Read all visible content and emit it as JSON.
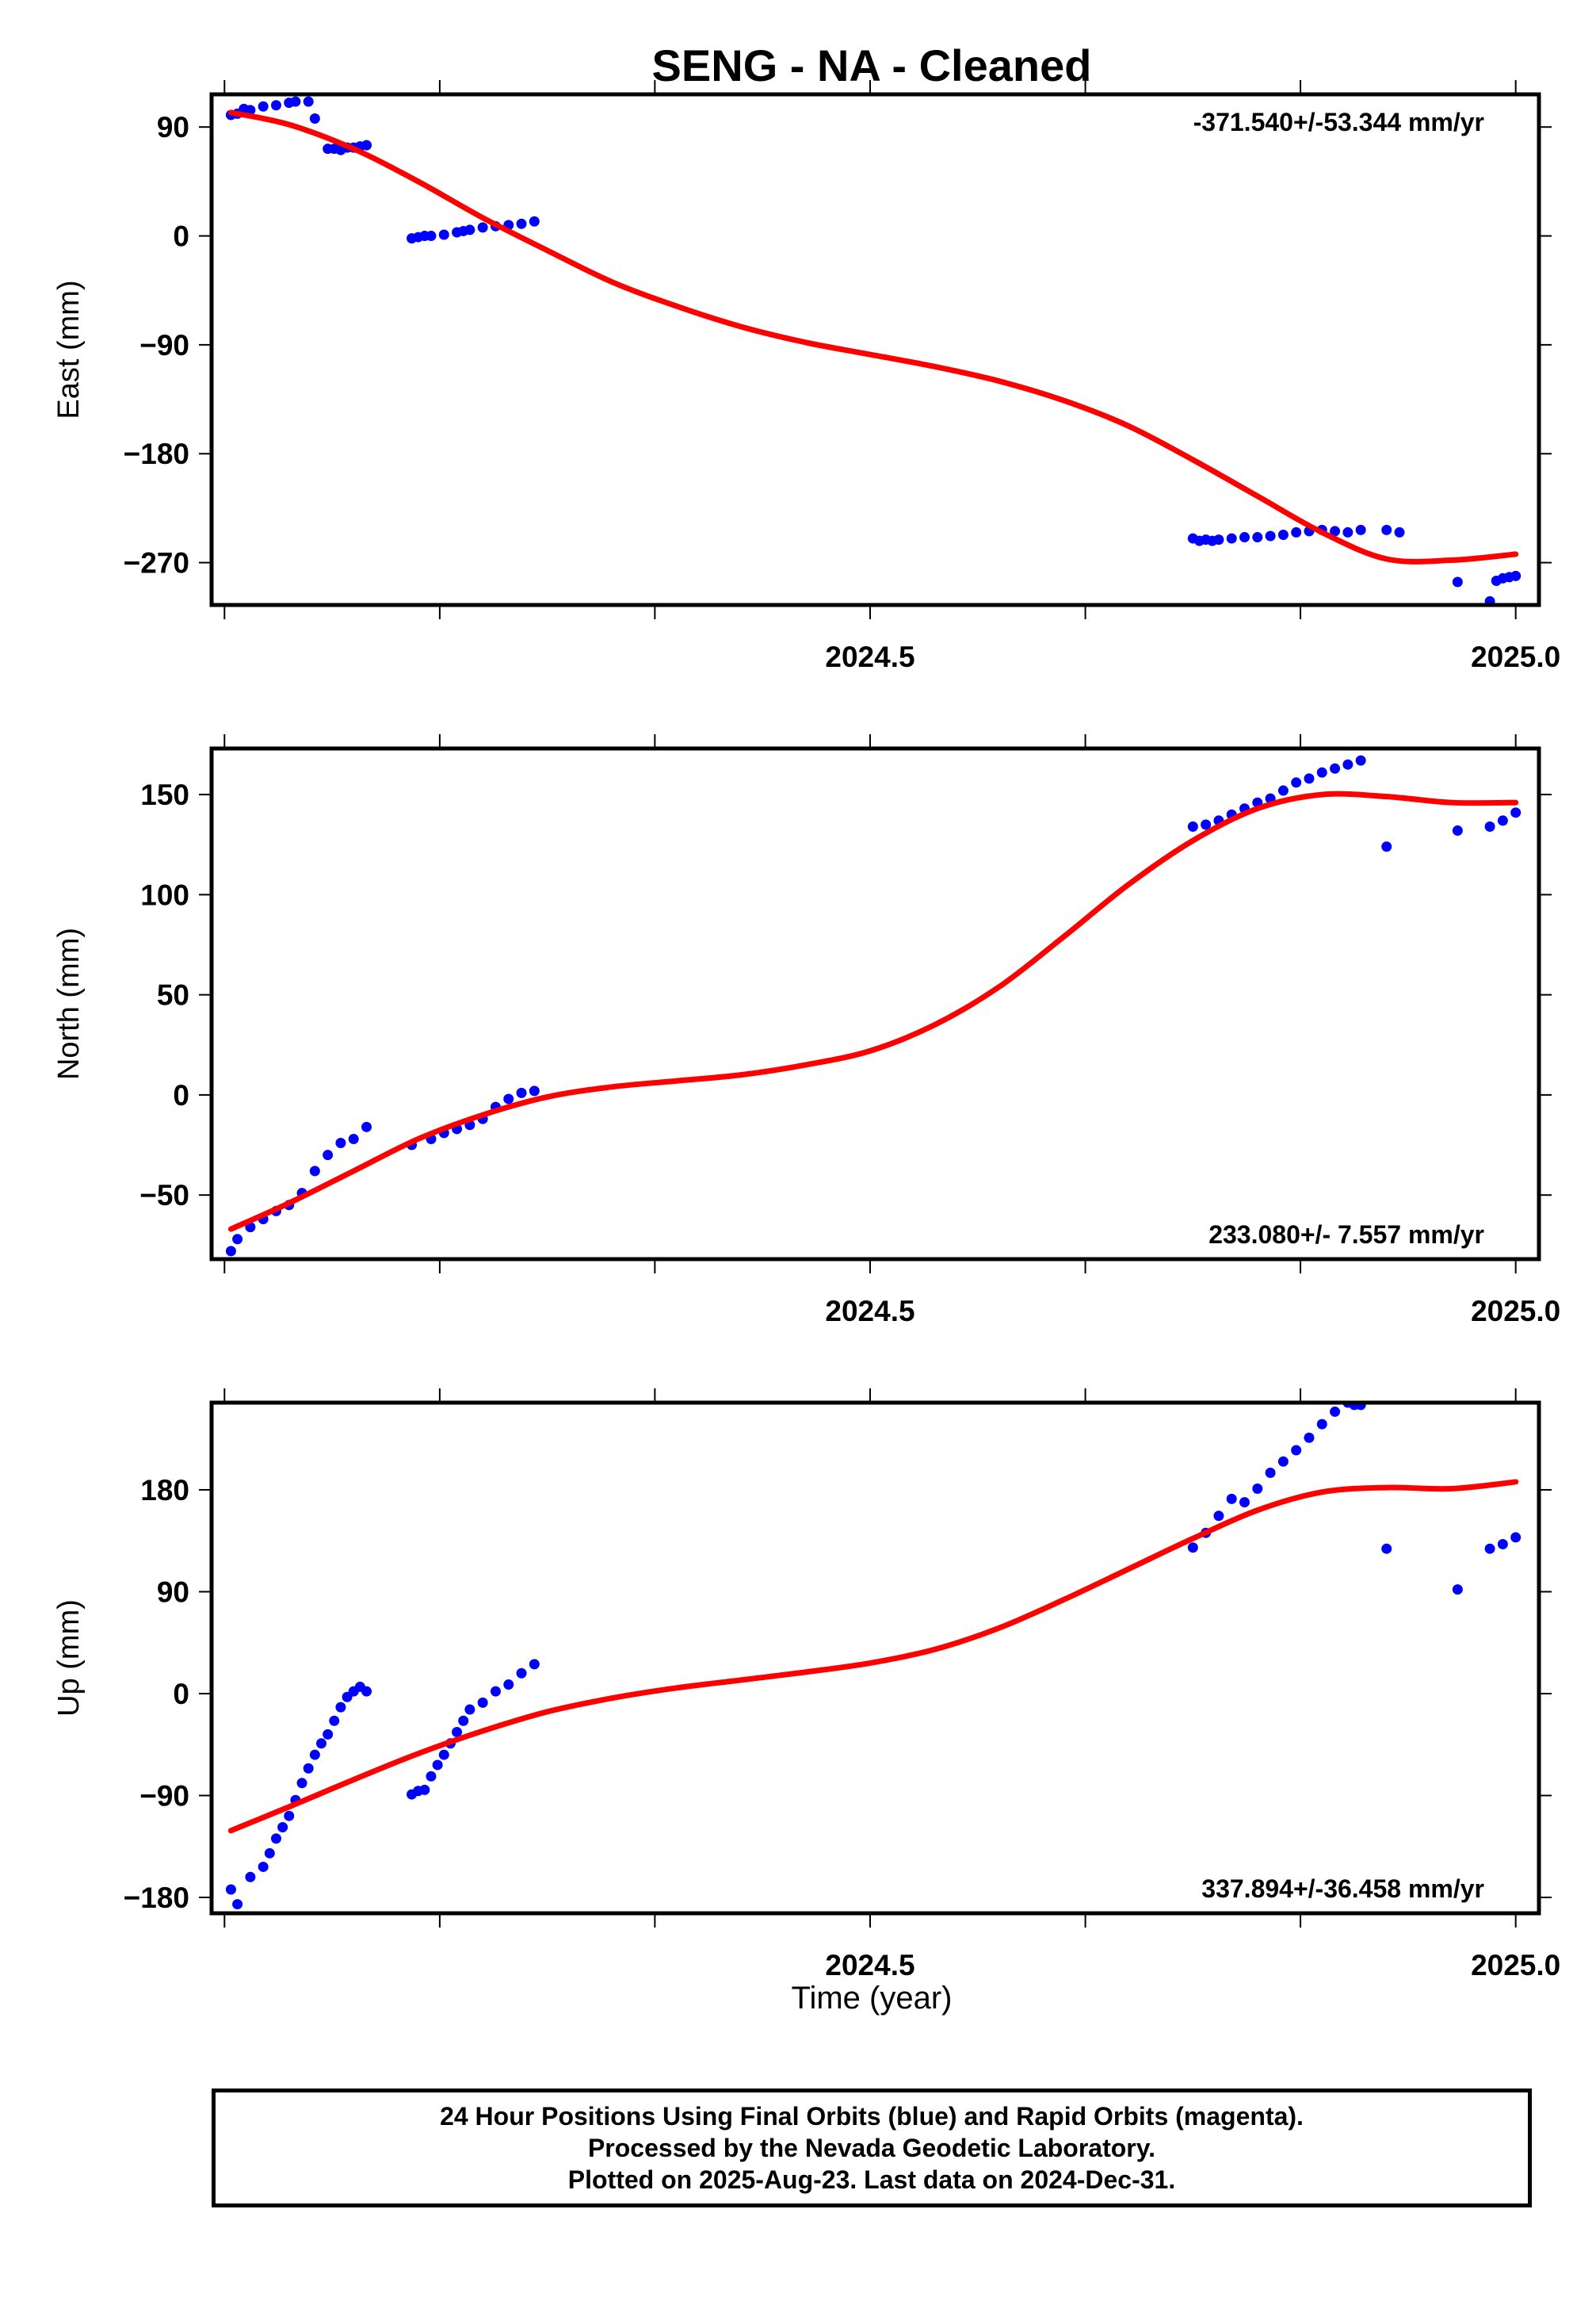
{
  "chart_data": {
    "title": "SENG  - NA - Cleaned",
    "type": "scatter",
    "xlabel": "Time (year)",
    "xticks": [
      "2024.5",
      "2025.0"
    ],
    "panels": [
      {
        "name": "East",
        "ylabel": "East (mm)",
        "yticks": [
          "90",
          "0",
          "−90",
          "−180",
          "−270"
        ],
        "ylim": [
          -305,
          117
        ],
        "xlim": [
          2023.99,
          2025.018
        ],
        "rate_label": "-371.540+/-53.344 mm/yr",
        "rate_position": "top-right",
        "fit": {
          "x": [
            2024.005,
            2024.05,
            2024.1,
            2024.15,
            2024.2,
            2024.25,
            2024.3,
            2024.35,
            2024.4,
            2024.45,
            2024.5,
            2024.55,
            2024.6,
            2024.65,
            2024.7,
            2024.75,
            2024.8,
            2024.85,
            2024.9,
            2024.95,
            2025.0
          ],
          "y": [
            102,
            92,
            72,
            45,
            15,
            -12,
            -38,
            -58,
            -75,
            -88,
            -98,
            -108,
            -120,
            -136,
            -157,
            -185,
            -215,
            -245,
            -267,
            -268,
            -263
          ]
        },
        "observations": {
          "x": [
            2024.005,
            2024.01,
            2024.015,
            2024.02,
            2024.03,
            2024.04,
            2024.05,
            2024.055,
            2024.065,
            2024.07,
            2024.08,
            2024.085,
            2024.09,
            2024.095,
            2024.1,
            2024.105,
            2024.11,
            2024.145,
            2024.15,
            2024.155,
            2024.16,
            2024.17,
            2024.18,
            2024.185,
            2024.19,
            2024.2,
            2024.21,
            2024.22,
            2024.23,
            2024.24,
            2024.75,
            2024.755,
            2024.76,
            2024.765,
            2024.77,
            2024.78,
            2024.79,
            2024.8,
            2024.81,
            2024.82,
            2024.83,
            2024.84,
            2024.85,
            2024.86,
            2024.87,
            2024.88,
            2024.9,
            2024.91,
            2024.955,
            2024.98,
            2024.985,
            2024.99,
            2024.995,
            2025.0
          ],
          "y": [
            100,
            101,
            105,
            104,
            107,
            108,
            110,
            111,
            111,
            97,
            72,
            72,
            71,
            73,
            73,
            74,
            75,
            -2,
            -1,
            0,
            0,
            1,
            3,
            4,
            5,
            7,
            8,
            9,
            10,
            12,
            -250,
            -252,
            -251,
            -252,
            -251,
            -250,
            -249,
            -249,
            -248,
            -247,
            -245,
            -244,
            -243,
            -244,
            -245,
            -243,
            -243,
            -245,
            -286,
            -302,
            -285,
            -283,
            -282,
            -281
          ]
        }
      },
      {
        "name": "North",
        "ylabel": "North (mm)",
        "yticks": [
          "150",
          "100",
          "50",
          "0",
          "−50"
        ],
        "ylim": [
          -82,
          173
        ],
        "xlim": [
          2023.99,
          2025.018
        ],
        "rate_label": "233.080+/- 7.557 mm/yr",
        "rate_position": "bottom-right",
        "fit": {
          "x": [
            2024.005,
            2024.05,
            2024.1,
            2024.15,
            2024.2,
            2024.25,
            2024.3,
            2024.35,
            2024.4,
            2024.45,
            2024.5,
            2024.55,
            2024.6,
            2024.65,
            2024.7,
            2024.75,
            2024.8,
            2024.85,
            2024.9,
            2024.95,
            2025.0
          ],
          "y": [
            -67,
            -54,
            -38,
            -22,
            -10,
            -1,
            4,
            7,
            10,
            15,
            22,
            35,
            54,
            79,
            105,
            127,
            143,
            150,
            149,
            146,
            146
          ]
        },
        "observations": {
          "x": [
            2024.005,
            2024.01,
            2024.02,
            2024.03,
            2024.04,
            2024.05,
            2024.06,
            2024.07,
            2024.08,
            2024.09,
            2024.1,
            2024.11,
            2024.145,
            2024.16,
            2024.17,
            2024.18,
            2024.19,
            2024.2,
            2024.21,
            2024.22,
            2024.23,
            2024.24,
            2024.75,
            2024.76,
            2024.77,
            2024.78,
            2024.79,
            2024.8,
            2024.81,
            2024.82,
            2024.83,
            2024.84,
            2024.85,
            2024.86,
            2024.87,
            2024.88,
            2024.9,
            2024.955,
            2024.98,
            2024.99,
            2025.0
          ],
          "y": [
            -78,
            -72,
            -66,
            -62,
            -58,
            -55,
            -49,
            -38,
            -30,
            -24,
            -22,
            -16,
            -25,
            -22,
            -19,
            -17,
            -15,
            -12,
            -6,
            -2,
            1,
            2,
            134,
            135,
            137,
            140,
            143,
            146,
            148,
            152,
            156,
            158,
            161,
            163,
            165,
            167,
            124,
            132,
            134,
            137,
            141
          ]
        }
      },
      {
        "name": "Up",
        "ylabel": "Up (mm)",
        "yticks": [
          "180",
          "90",
          "0",
          "−90",
          "−180"
        ],
        "ylim": [
          -194,
          257
        ],
        "xlim": [
          2023.99,
          2025.018
        ],
        "rate_label": "337.894+/-36.458 mm/yr",
        "rate_position": "bottom-right",
        "fit": {
          "x": [
            2024.005,
            2024.05,
            2024.1,
            2024.15,
            2024.2,
            2024.25,
            2024.3,
            2024.35,
            2024.4,
            2024.45,
            2024.5,
            2024.55,
            2024.6,
            2024.65,
            2024.7,
            2024.75,
            2024.8,
            2024.85,
            2024.9,
            2024.95,
            2025.0
          ],
          "y": [
            -121,
            -100,
            -76,
            -53,
            -33,
            -16,
            -4,
            5,
            12,
            19,
            27,
            39,
            58,
            83,
            110,
            137,
            162,
            178,
            182,
            181,
            187
          ]
        },
        "observations": {
          "x": [
            2024.005,
            2024.01,
            2024.02,
            2024.03,
            2024.035,
            2024.04,
            2024.045,
            2024.05,
            2024.055,
            2024.06,
            2024.065,
            2024.07,
            2024.075,
            2024.08,
            2024.085,
            2024.09,
            2024.095,
            2024.1,
            2024.105,
            2024.11,
            2024.145,
            2024.15,
            2024.155,
            2024.16,
            2024.165,
            2024.17,
            2024.175,
            2024.18,
            2024.185,
            2024.19,
            2024.2,
            2024.21,
            2024.22,
            2024.23,
            2024.24,
            2024.75,
            2024.76,
            2024.77,
            2024.78,
            2024.79,
            2024.8,
            2024.81,
            2024.82,
            2024.83,
            2024.84,
            2024.85,
            2024.86,
            2024.87,
            2024.875,
            2024.88,
            2024.9,
            2024.955,
            2024.98,
            2024.99,
            2025.0
          ],
          "y": [
            -173,
            -186,
            -162,
            -153,
            -141,
            -128,
            -118,
            -108,
            -94,
            -79,
            -66,
            -54,
            -44,
            -36,
            -24,
            -12,
            -3,
            2,
            6,
            2,
            -89,
            -86,
            -85,
            -73,
            -63,
            -54,
            -44,
            -34,
            -24,
            -14,
            -8,
            2,
            8,
            18,
            26,
            129,
            142,
            157,
            172,
            169,
            181,
            195,
            205,
            215,
            226,
            238,
            249,
            257,
            255,
            255,
            128,
            92,
            128,
            132,
            138
          ]
        }
      }
    ],
    "colors": {
      "fit": "#ff0000",
      "observations": "#0000ff",
      "axes": "#000000"
    }
  },
  "footer": {
    "line1": "24 Hour Positions Using Final Orbits (blue) and Rapid Orbits (magenta).",
    "line2": "Processed by the Nevada Geodetic Laboratory.",
    "line3": "Plotted on 2025-Aug-23. Last data on 2024-Dec-31."
  }
}
